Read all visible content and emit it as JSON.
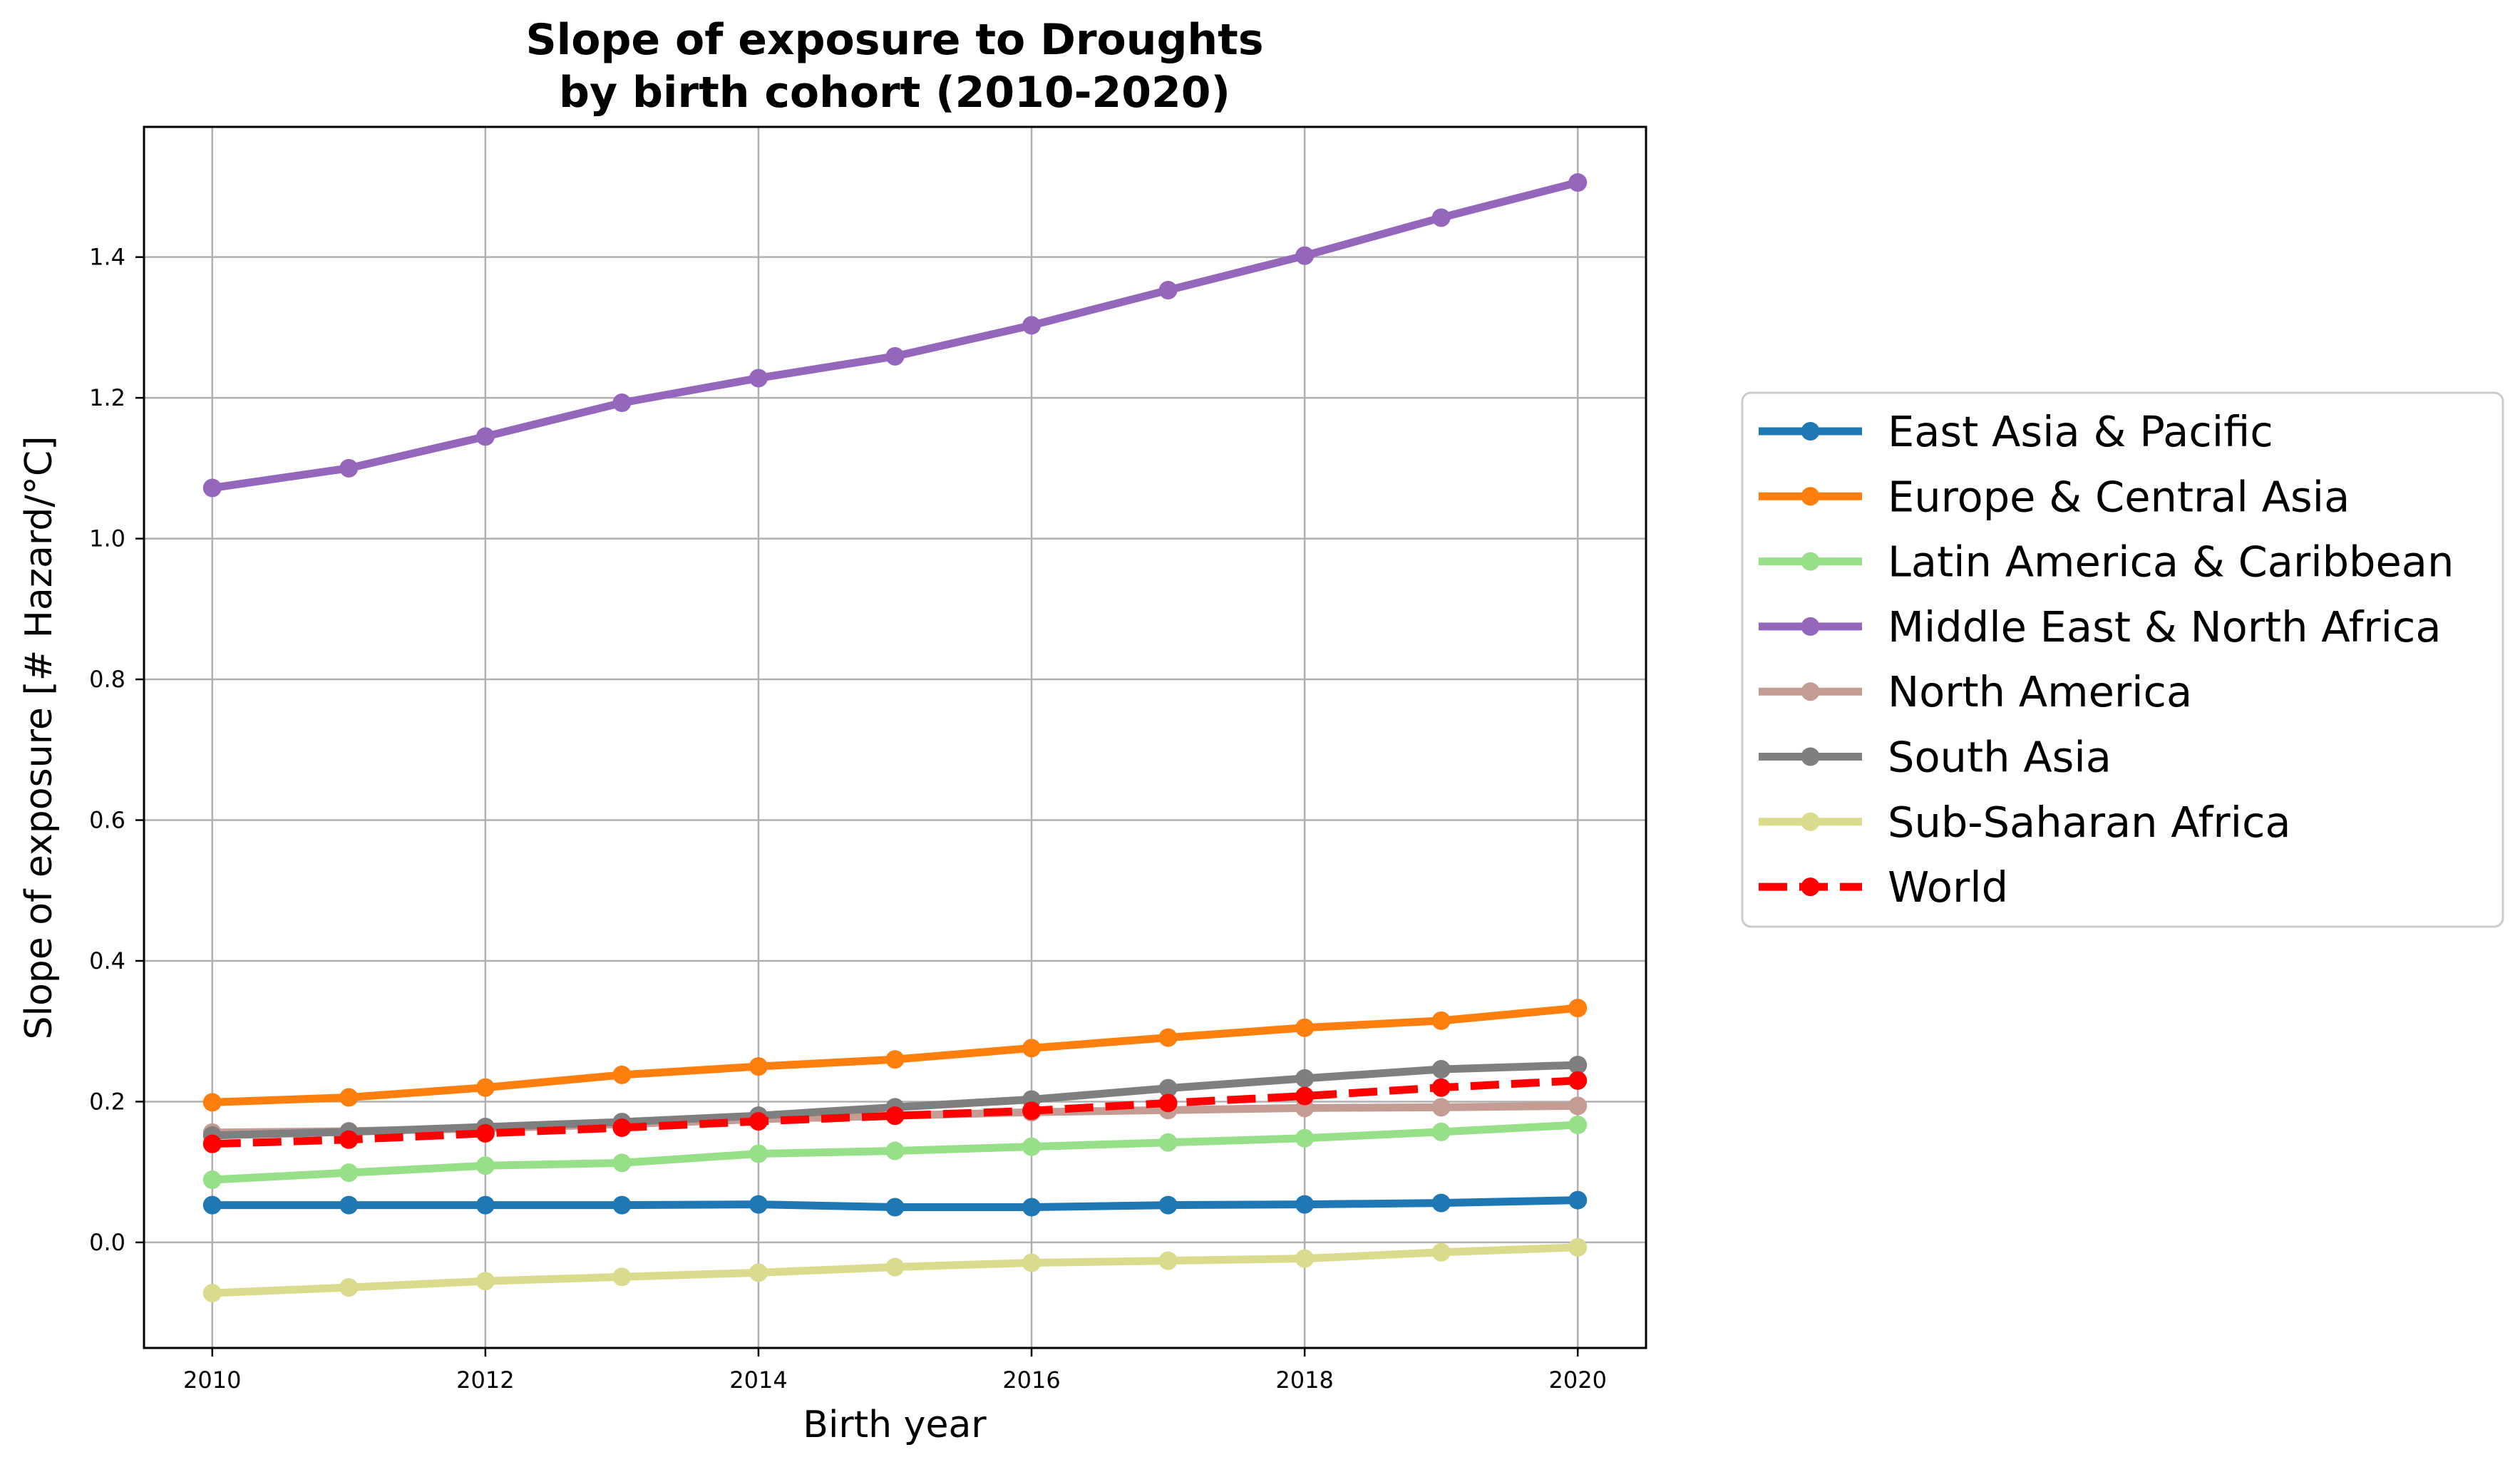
{
  "chart_data": {
    "type": "line",
    "title": [
      "Slope of exposure to Droughts",
      "by birth cohort (2010-2020)"
    ],
    "xlabel": "Birth year",
    "ylabel": "Slope of exposure [# Hazard/°C]",
    "xlim": [
      2009.5,
      2020.5
    ],
    "ylim": [
      -0.15,
      1.585
    ],
    "xticks": [
      "2010",
      "2012",
      "2014",
      "2016",
      "2018",
      "2020"
    ],
    "yticks": [
      "0.0",
      "0.2",
      "0.4",
      "0.6",
      "0.8",
      "1.0",
      "1.2",
      "1.4"
    ],
    "grid": true,
    "legend_position": "outside-right",
    "x": [
      2010,
      2011,
      2012,
      2013,
      2014,
      2015,
      2016,
      2017,
      2018,
      2019,
      2020
    ],
    "series": [
      {
        "name": "East Asia & Pacific",
        "color": "#1f77b4",
        "dashed": false,
        "values": [
          0.053,
          0.053,
          0.053,
          0.053,
          0.054,
          0.05,
          0.05,
          0.053,
          0.054,
          0.056,
          0.06
        ]
      },
      {
        "name": "Europe & Central Asia",
        "color": "#ff7f0e",
        "dashed": false,
        "values": [
          0.199,
          0.206,
          0.22,
          0.238,
          0.25,
          0.26,
          0.276,
          0.291,
          0.305,
          0.315,
          0.333
        ]
      },
      {
        "name": "Latin America & Caribbean",
        "color": "#98df8a",
        "dashed": false,
        "values": [
          0.089,
          0.099,
          0.109,
          0.113,
          0.126,
          0.13,
          0.136,
          0.142,
          0.148,
          0.157,
          0.167
        ]
      },
      {
        "name": "Middle East & North Africa",
        "color": "#9467bd",
        "dashed": false,
        "values": [
          1.072,
          1.1,
          1.145,
          1.193,
          1.228,
          1.259,
          1.303,
          1.353,
          1.402,
          1.456,
          1.506
        ]
      },
      {
        "name": "North America",
        "color": "#c49c94",
        "dashed": false,
        "values": [
          0.156,
          0.158,
          0.162,
          0.168,
          0.175,
          0.18,
          0.185,
          0.188,
          0.191,
          0.192,
          0.194
        ]
      },
      {
        "name": "South Asia",
        "color": "#7f7f7f",
        "dashed": false,
        "values": [
          0.152,
          0.157,
          0.164,
          0.171,
          0.18,
          0.192,
          0.203,
          0.219,
          0.233,
          0.246,
          0.252
        ]
      },
      {
        "name": "Sub-Saharan Africa",
        "color": "#dbdb8d",
        "dashed": false,
        "values": [
          -0.072,
          -0.064,
          -0.055,
          -0.049,
          -0.043,
          -0.035,
          -0.029,
          -0.026,
          -0.023,
          -0.014,
          -0.007
        ]
      },
      {
        "name": "World",
        "color": "#ff0000",
        "dashed": true,
        "values": [
          0.14,
          0.146,
          0.155,
          0.163,
          0.172,
          0.18,
          0.187,
          0.198,
          0.208,
          0.22,
          0.23
        ]
      }
    ]
  }
}
